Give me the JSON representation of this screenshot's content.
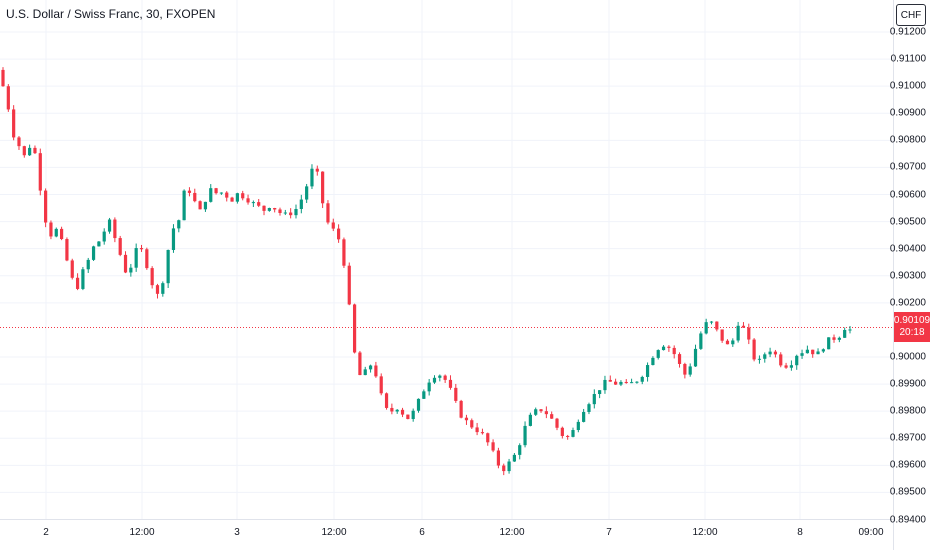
{
  "title": "U.S. Dollar / Swiss Franc, 30, FXOPEN",
  "currency_button": "CHF",
  "last_price": {
    "value": "0.90109",
    "countdown": "20:18"
  },
  "colors": {
    "up": "#089981",
    "down": "#f23645",
    "grid": "#f0f3fa",
    "last_line": "#f23645"
  },
  "chart_data": {
    "type": "candlestick",
    "interval": "30",
    "y_axis": {
      "ticks": [
        "0.91200",
        "0.91100",
        "0.91000",
        "0.90900",
        "0.90800",
        "0.90700",
        "0.90600",
        "0.90500",
        "0.90400",
        "0.90300",
        "0.90200",
        "0.90000",
        "0.89900",
        "0.89800",
        "0.89700",
        "0.89600",
        "0.89500",
        "0.89400"
      ],
      "ylim": [
        0.894,
        0.9124
      ]
    },
    "x_axis": {
      "ticks": [
        "2",
        "12:00",
        "3",
        "12:00",
        "6",
        "12:00",
        "7",
        "12:00",
        "8",
        "09:00"
      ]
    },
    "grid": true,
    "close_path": [
      0.91,
      0.9092,
      0.9082,
      0.9078,
      0.9074,
      0.9078,
      0.9075,
      0.9062,
      0.905,
      0.9045,
      0.9047,
      0.9042,
      0.9035,
      0.9028,
      0.9026,
      0.9032,
      0.9036,
      0.9041,
      0.9043,
      0.9047,
      0.905,
      0.9043,
      0.9037,
      0.9031,
      0.9034,
      0.904,
      0.9039,
      0.9033,
      0.9026,
      0.9022,
      0.903,
      0.9042,
      0.9049,
      0.9051,
      0.9063,
      0.9061,
      0.9056,
      0.9053,
      0.906,
      0.9062,
      0.906,
      0.9061,
      0.9059,
      0.9058,
      0.9061,
      0.9059,
      0.9058,
      0.9056,
      0.9055,
      0.9054,
      0.9057,
      0.9054,
      0.9053,
      0.9052,
      0.9054,
      0.9055,
      0.906,
      0.9065,
      0.9071,
      0.9065,
      0.9052,
      0.9048,
      0.9046,
      0.9042,
      0.903,
      0.901,
      0.8995,
      0.8992,
      0.8996,
      0.8998,
      0.899,
      0.8982,
      0.8979,
      0.8981,
      0.8982,
      0.8977,
      0.8978,
      0.8981,
      0.8986,
      0.899,
      0.8993,
      0.8994,
      0.8993,
      0.899,
      0.8985,
      0.898,
      0.8977,
      0.8975,
      0.8974,
      0.8972,
      0.897,
      0.8966,
      0.8962,
      0.8958,
      0.896,
      0.8962,
      0.8966,
      0.8972,
      0.8977,
      0.8979,
      0.8981,
      0.898,
      0.8978,
      0.8975,
      0.8972,
      0.897,
      0.8971,
      0.8976,
      0.898,
      0.8983,
      0.8985,
      0.8988,
      0.899,
      0.8991,
      0.899,
      0.8991,
      0.8989,
      0.899,
      0.8991,
      0.8993,
      0.8996,
      0.9,
      0.9003,
      0.9005,
      0.9004,
      0.9002,
      0.8998,
      0.8993,
      0.8996,
      0.9002,
      0.9008,
      0.9012,
      0.9013,
      0.901,
      0.9007,
      0.9004,
      0.9005,
      0.9013,
      0.9011,
      0.9006,
      0.9,
      0.8998,
      0.9001,
      0.9003,
      0.9001,
      0.8998,
      0.8997,
      0.8998,
      0.9001,
      0.9002,
      0.9003,
      0.9002,
      0.9001,
      0.9004,
      0.9006,
      0.9007,
      0.9008,
      0.9011,
      0.901
    ]
  }
}
